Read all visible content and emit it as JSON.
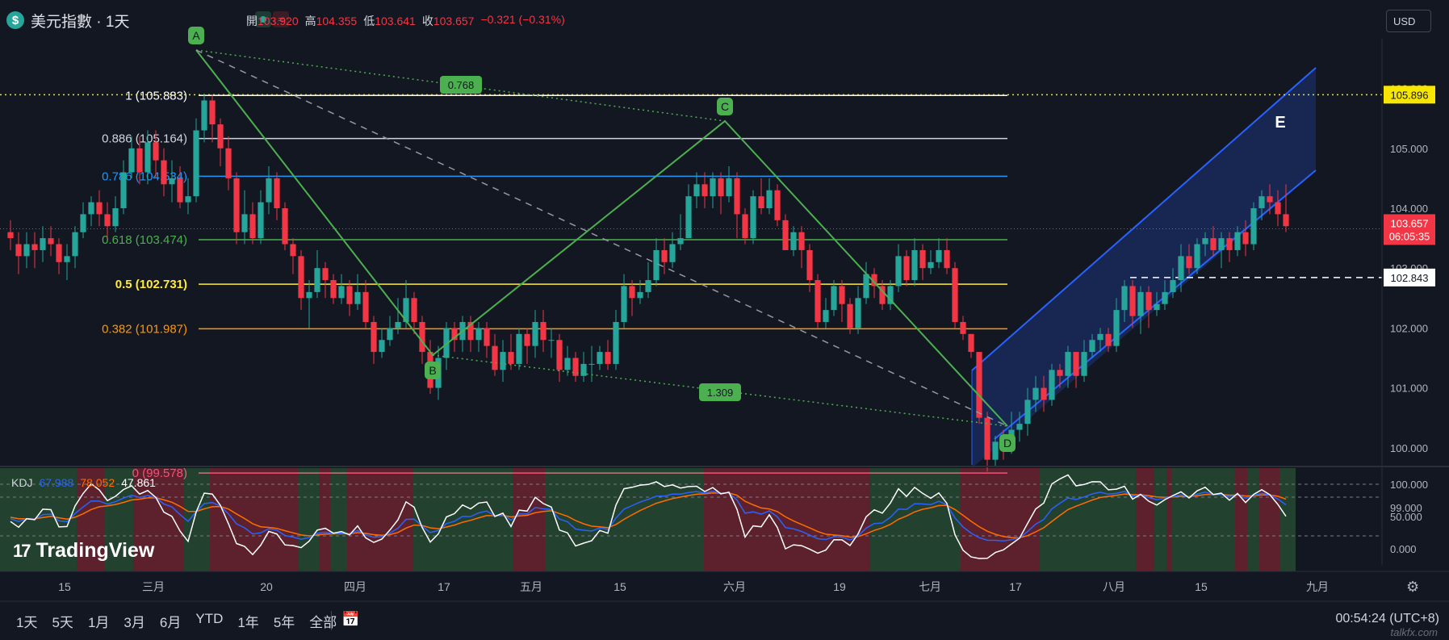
{
  "header": {
    "symbol_icon": "$",
    "title": "美元指數 · 1天",
    "ohlc": [
      {
        "k": "開",
        "v": "103.920"
      },
      {
        "k": "高",
        "v": "104.355"
      },
      {
        "k": "低",
        "v": "103.641"
      },
      {
        "k": "收",
        "v": "103.657"
      },
      {
        "k": "",
        "v": "−0.321 (−0.31%)"
      }
    ],
    "currency": "USD"
  },
  "price_scale": {
    "ticks": [
      "106.000",
      "105.000",
      "104.000",
      "103.000",
      "102.000",
      "101.000",
      "100.000",
      "99.000"
    ],
    "last_price": "103.657",
    "countdown": "06:05:35",
    "top_marker": "105.896",
    "line_marker": "102.843"
  },
  "time_axis": [
    "15",
    "三月",
    "20",
    "四月",
    "17",
    "五月",
    "15",
    "六月",
    "19",
    "七月",
    "17",
    "八月",
    "15",
    "九月"
  ],
  "kdj": {
    "label": "KDJ",
    "k": "67.988",
    "d": "78.052",
    "j": "47.861",
    "ticks": [
      "100.000",
      "50.000",
      "0.000"
    ]
  },
  "bottom_bar": {
    "timeframes": [
      "1天",
      "5天",
      "1月",
      "3月",
      "6月",
      "YTD",
      "1年",
      "5年",
      "全部"
    ],
    "clock": "00:54:24 (UTC+8)"
  },
  "logo": "TradingView",
  "watermark": "talkfx.com",
  "chart_data": {
    "type": "candlestick",
    "fib_levels": [
      {
        "label": "1 (105.883)",
        "value": 105.883,
        "color": "#ffffff"
      },
      {
        "label": "0.886 (105.164)",
        "value": 105.164,
        "color": "#d1d4dc"
      },
      {
        "label": "0.786 (104.534)",
        "value": 104.534,
        "color": "#2196f3"
      },
      {
        "label": "0.618 (103.474)",
        "value": 103.474,
        "color": "#4caf50"
      },
      {
        "label": "0.5 (102.731)",
        "value": 102.731,
        "color": "#ffeb3b"
      },
      {
        "label": "0.382 (101.987)",
        "value": 101.987,
        "color": "#ff9800"
      },
      {
        "label": "0 (99.578)",
        "value": 99.578,
        "color": "#f06292"
      }
    ],
    "pattern_points": [
      {
        "label": "A",
        "price": 105.9
      },
      {
        "label": "B",
        "price": 100.8
      },
      {
        "label": "C",
        "price": 104.7
      },
      {
        "label": "D",
        "price": 99.6
      },
      {
        "label": "E",
        "price": 104.4
      }
    ],
    "ratios": [
      "0.768",
      "1.309"
    ],
    "candles": [
      [
        103.6,
        103.5,
        103.8,
        103.3
      ],
      [
        103.4,
        103.2,
        103.6,
        102.9
      ],
      [
        103.2,
        103.4,
        103.6,
        103.0
      ],
      [
        103.4,
        103.3,
        103.6,
        103.0
      ],
      [
        103.3,
        103.5,
        103.7,
        103.1
      ],
      [
        103.5,
        103.4,
        103.7,
        103.2
      ],
      [
        103.4,
        103.1,
        103.5,
        102.9
      ],
      [
        103.1,
        103.2,
        103.4,
        102.8
      ],
      [
        103.2,
        103.6,
        103.7,
        103.0
      ],
      [
        103.6,
        103.9,
        104.1,
        103.5
      ],
      [
        103.9,
        104.1,
        104.2,
        103.7
      ],
      [
        104.1,
        103.9,
        104.3,
        103.7
      ],
      [
        103.9,
        103.7,
        104.1,
        103.5
      ],
      [
        103.7,
        104.0,
        104.2,
        103.6
      ],
      [
        104.0,
        104.6,
        104.8,
        103.9
      ],
      [
        104.6,
        105.0,
        105.2,
        104.5
      ],
      [
        105.0,
        104.6,
        105.2,
        104.4
      ],
      [
        104.6,
        105.1,
        105.3,
        104.4
      ],
      [
        105.1,
        104.8,
        105.3,
        104.5
      ],
      [
        104.8,
        104.4,
        105.0,
        104.2
      ],
      [
        104.4,
        104.5,
        104.8,
        104.1
      ],
      [
        104.5,
        104.1,
        104.7,
        104.0
      ],
      [
        104.1,
        104.2,
        104.5,
        103.9
      ],
      [
        104.2,
        105.3,
        105.5,
        104.1
      ],
      [
        105.3,
        105.8,
        105.9,
        105.1
      ],
      [
        105.8,
        105.4,
        105.9,
        105.1
      ],
      [
        105.4,
        105.0,
        105.5,
        104.7
      ],
      [
        105.0,
        104.5,
        105.2,
        104.3
      ],
      [
        104.5,
        103.6,
        104.6,
        103.4
      ],
      [
        103.6,
        103.9,
        104.3,
        103.4
      ],
      [
        103.9,
        103.5,
        104.1,
        103.4
      ],
      [
        103.5,
        104.1,
        104.3,
        103.4
      ],
      [
        104.1,
        104.5,
        104.7,
        103.9
      ],
      [
        104.5,
        104.0,
        104.6,
        103.8
      ],
      [
        104.0,
        103.4,
        104.1,
        103.3
      ],
      [
        103.4,
        103.2,
        103.5,
        102.9
      ],
      [
        103.2,
        102.5,
        103.3,
        102.3
      ],
      [
        102.5,
        102.6,
        102.8,
        102.0
      ],
      [
        102.6,
        103.0,
        103.3,
        102.5
      ],
      [
        103.0,
        102.8,
        103.1,
        102.5
      ],
      [
        102.8,
        102.5,
        102.9,
        102.4
      ],
      [
        102.5,
        102.7,
        102.9,
        102.4
      ],
      [
        102.7,
        102.4,
        102.8,
        102.2
      ],
      [
        102.4,
        102.6,
        102.9,
        102.3
      ],
      [
        102.6,
        102.1,
        102.8,
        102.0
      ],
      [
        102.1,
        101.6,
        102.2,
        101.4
      ],
      [
        101.6,
        101.8,
        102.0,
        101.5
      ],
      [
        101.8,
        102.0,
        102.2,
        101.7
      ],
      [
        102.0,
        102.1,
        102.5,
        101.9
      ],
      [
        102.1,
        102.5,
        102.8,
        102.0
      ],
      [
        102.5,
        102.1,
        102.6,
        101.9
      ],
      [
        102.1,
        101.6,
        102.2,
        101.4
      ],
      [
        101.6,
        101.0,
        101.8,
        100.9
      ],
      [
        101.0,
        101.5,
        101.7,
        100.8
      ],
      [
        101.5,
        102.0,
        102.1,
        101.3
      ],
      [
        102.0,
        101.8,
        102.1,
        101.6
      ],
      [
        101.8,
        102.1,
        102.2,
        101.6
      ],
      [
        102.1,
        101.8,
        102.2,
        101.6
      ],
      [
        101.8,
        102.0,
        102.1,
        101.6
      ],
      [
        102.0,
        101.7,
        102.1,
        101.5
      ],
      [
        101.7,
        101.3,
        101.9,
        101.2
      ],
      [
        101.3,
        101.6,
        101.8,
        101.1
      ],
      [
        101.6,
        101.4,
        101.9,
        101.3
      ],
      [
        101.4,
        101.9,
        102.0,
        101.3
      ],
      [
        101.9,
        101.7,
        102.0,
        101.4
      ],
      [
        101.7,
        102.1,
        102.3,
        101.5
      ],
      [
        102.1,
        101.8,
        102.3,
        101.6
      ],
      [
        101.8,
        101.8,
        102.0,
        101.5
      ],
      [
        101.8,
        101.3,
        101.9,
        101.1
      ],
      [
        101.3,
        101.5,
        101.7,
        101.2
      ],
      [
        101.5,
        101.2,
        101.6,
        101.1
      ],
      [
        101.2,
        101.4,
        101.6,
        101.1
      ],
      [
        101.4,
        101.4,
        101.7,
        101.1
      ],
      [
        101.4,
        101.6,
        101.7,
        101.3
      ],
      [
        101.6,
        101.4,
        101.8,
        101.3
      ],
      [
        101.4,
        102.1,
        102.3,
        101.3
      ],
      [
        102.1,
        102.7,
        102.9,
        102.0
      ],
      [
        102.7,
        102.5,
        102.8,
        102.2
      ],
      [
        102.5,
        102.6,
        102.8,
        102.4
      ],
      [
        102.6,
        102.8,
        103.1,
        102.5
      ],
      [
        102.8,
        103.3,
        103.5,
        102.7
      ],
      [
        103.3,
        103.1,
        103.5,
        102.9
      ],
      [
        103.1,
        103.4,
        103.6,
        103.0
      ],
      [
        103.4,
        103.5,
        103.9,
        103.3
      ],
      [
        103.5,
        104.2,
        104.4,
        103.5
      ],
      [
        104.2,
        104.4,
        104.6,
        104.0
      ],
      [
        104.4,
        104.2,
        104.6,
        104.0
      ],
      [
        104.2,
        104.5,
        104.6,
        104.0
      ],
      [
        104.5,
        104.2,
        104.6,
        103.9
      ],
      [
        104.2,
        104.5,
        104.7,
        104.1
      ],
      [
        104.5,
        103.9,
        104.6,
        103.5
      ],
      [
        103.9,
        103.5,
        104.0,
        103.4
      ],
      [
        103.5,
        104.2,
        104.3,
        103.4
      ],
      [
        104.2,
        104.0,
        104.5,
        103.9
      ],
      [
        104.0,
        104.3,
        104.5,
        103.9
      ],
      [
        104.3,
        103.8,
        104.4,
        103.7
      ],
      [
        103.8,
        103.3,
        103.9,
        103.3
      ],
      [
        103.3,
        103.6,
        103.7,
        103.2
      ],
      [
        103.6,
        103.3,
        103.7,
        103.0
      ],
      [
        103.3,
        102.8,
        103.4,
        102.6
      ],
      [
        102.8,
        102.1,
        102.9,
        102.0
      ],
      [
        102.1,
        102.3,
        102.5,
        102.0
      ],
      [
        102.3,
        102.7,
        102.8,
        102.2
      ],
      [
        102.7,
        102.4,
        102.8,
        102.1
      ],
      [
        102.4,
        102.0,
        102.5,
        101.9
      ],
      [
        102.0,
        102.5,
        102.7,
        101.9
      ],
      [
        102.5,
        102.9,
        103.1,
        102.4
      ],
      [
        102.9,
        102.7,
        103.0,
        102.5
      ],
      [
        102.7,
        102.4,
        102.8,
        102.3
      ],
      [
        102.4,
        102.7,
        102.8,
        102.3
      ],
      [
        102.7,
        103.2,
        103.4,
        102.6
      ],
      [
        103.2,
        102.8,
        103.3,
        102.7
      ],
      [
        102.8,
        103.3,
        103.5,
        102.7
      ],
      [
        103.3,
        103.0,
        103.4,
        102.8
      ],
      [
        103.0,
        103.1,
        103.3,
        102.9
      ],
      [
        103.1,
        103.3,
        103.5,
        103.0
      ],
      [
        103.3,
        103.0,
        103.5,
        102.9
      ],
      [
        103.0,
        102.1,
        103.1,
        102.0
      ],
      [
        102.1,
        101.9,
        102.2,
        101.8
      ],
      [
        101.9,
        101.6,
        101.9,
        101.5
      ],
      [
        101.6,
        100.5,
        101.6,
        100.4
      ],
      [
        100.5,
        99.8,
        100.6,
        99.6
      ],
      [
        99.8,
        100.1,
        100.2,
        99.7
      ],
      [
        100.1,
        100.0,
        100.3,
        99.8
      ],
      [
        100.0,
        100.3,
        100.6,
        99.9
      ],
      [
        100.3,
        100.4,
        100.6,
        100.1
      ],
      [
        100.4,
        100.8,
        101.0,
        100.2
      ],
      [
        100.8,
        101.0,
        101.2,
        100.6
      ],
      [
        101.0,
        100.8,
        101.2,
        100.6
      ],
      [
        100.8,
        101.3,
        101.4,
        100.7
      ],
      [
        101.3,
        101.2,
        101.4,
        101.0
      ],
      [
        101.2,
        101.6,
        101.7,
        101.0
      ],
      [
        101.6,
        101.2,
        101.6,
        101.0
      ],
      [
        101.2,
        101.6,
        101.8,
        101.1
      ],
      [
        101.6,
        101.8,
        101.9,
        101.5
      ],
      [
        101.8,
        101.9,
        102.0,
        101.6
      ],
      [
        101.9,
        101.7,
        102.0,
        101.6
      ],
      [
        101.7,
        102.3,
        102.5,
        101.6
      ],
      [
        102.3,
        102.7,
        102.8,
        102.1
      ],
      [
        102.7,
        102.2,
        102.8,
        102.0
      ],
      [
        102.2,
        102.6,
        102.7,
        101.9
      ],
      [
        102.6,
        102.3,
        102.7,
        102.0
      ],
      [
        102.3,
        102.4,
        102.6,
        102.2
      ],
      [
        102.4,
        102.6,
        102.8,
        102.3
      ],
      [
        102.6,
        102.8,
        103.0,
        102.5
      ],
      [
        102.8,
        103.2,
        103.4,
        102.6
      ],
      [
        103.2,
        103.0,
        103.4,
        102.9
      ],
      [
        103.0,
        103.4,
        103.5,
        102.9
      ],
      [
        103.4,
        103.5,
        103.6,
        103.2
      ],
      [
        103.5,
        103.3,
        103.7,
        103.2
      ],
      [
        103.3,
        103.5,
        103.6,
        103.0
      ],
      [
        103.5,
        103.3,
        103.6,
        103.1
      ],
      [
        103.3,
        103.6,
        103.7,
        103.2
      ],
      [
        103.6,
        103.4,
        103.8,
        103.2
      ],
      [
        103.4,
        104.0,
        104.1,
        103.3
      ],
      [
        104.0,
        104.2,
        104.3,
        103.8
      ],
      [
        104.2,
        104.1,
        104.4,
        103.9
      ],
      [
        104.1,
        103.9,
        104.3,
        103.7
      ],
      [
        103.9,
        103.7,
        104.4,
        103.6
      ]
    ]
  }
}
